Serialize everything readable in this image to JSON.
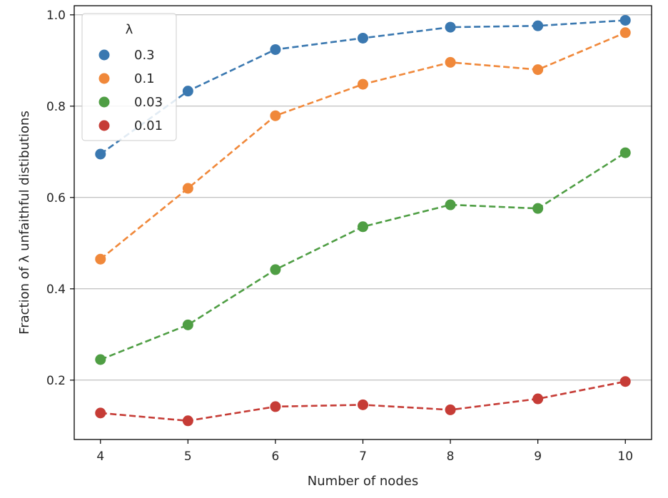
{
  "chart_data": {
    "type": "line",
    "title": "",
    "xlabel": "Number of nodes",
    "ylabel": "Fraction of λ unfaithful distibutions",
    "x": [
      4,
      5,
      6,
      7,
      8,
      9,
      10
    ],
    "x_ticks": [
      "4",
      "5",
      "6",
      "7",
      "8",
      "9",
      "10"
    ],
    "y_ticks": [
      "0.2",
      "0.4",
      "0.6",
      "0.8",
      "1.0"
    ],
    "y_tick_values": [
      0.2,
      0.4,
      0.6,
      0.8,
      1.0
    ],
    "xlim": [
      3.7,
      10.3
    ],
    "ylim": [
      0.07,
      1.02
    ],
    "grid": "horizontal",
    "legend": {
      "title": "λ",
      "placement": "top-left"
    },
    "series": [
      {
        "name": "0.3",
        "color": "#3a78b0",
        "values": [
          0.695,
          0.833,
          0.924,
          0.949,
          0.973,
          0.976,
          0.988
        ]
      },
      {
        "name": "0.1",
        "color": "#f0883a",
        "values": [
          0.465,
          0.62,
          0.779,
          0.848,
          0.896,
          0.88,
          0.961
        ]
      },
      {
        "name": "0.03",
        "color": "#4f9e44",
        "values": [
          0.245,
          0.321,
          0.442,
          0.536,
          0.584,
          0.576,
          0.698
        ]
      },
      {
        "name": "0.01",
        "color": "#c63c36",
        "values": [
          0.128,
          0.111,
          0.142,
          0.146,
          0.135,
          0.159,
          0.197
        ]
      }
    ]
  }
}
